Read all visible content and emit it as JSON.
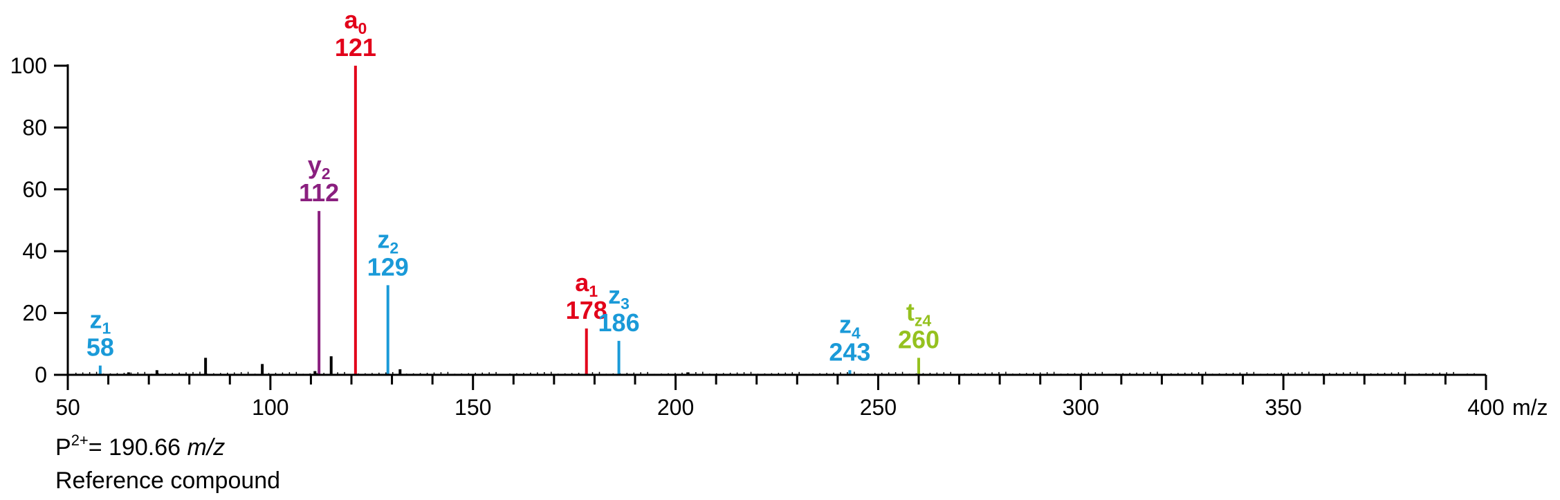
{
  "chart_data": {
    "type": "bar",
    "title": "",
    "xlabel": "m/z",
    "ylabel": "",
    "xlim": [
      50,
      400
    ],
    "ylim": [
      0,
      100
    ],
    "x_ticks": [
      "50",
      "100",
      "150",
      "200",
      "250",
      "300",
      "350",
      "400"
    ],
    "y_ticks": [
      "0",
      "20",
      "40",
      "60",
      "80",
      "100"
    ],
    "colors": {
      "a_ions": "#e2001a",
      "y_ions": "#8a1f7f",
      "z_ions": "#1a9ad8",
      "t_ions": "#95c11f",
      "unassigned": "#000000"
    },
    "labeled_peaks": [
      {
        "ion": "z",
        "sub": "1",
        "mz": 58,
        "label": "58",
        "intensity": 3,
        "color": "#1a9ad8"
      },
      {
        "ion": "y",
        "sub": "2",
        "mz": 112,
        "label": "112",
        "intensity": 53,
        "color": "#8a1f7f"
      },
      {
        "ion": "a",
        "sub": "0",
        "mz": 121,
        "label": "121",
        "intensity": 100,
        "color": "#e2001a"
      },
      {
        "ion": "z",
        "sub": "2",
        "mz": 129,
        "label": "129",
        "intensity": 29,
        "color": "#1a9ad8"
      },
      {
        "ion": "a",
        "sub": "1",
        "mz": 178,
        "label": "178",
        "intensity": 15,
        "color": "#e2001a"
      },
      {
        "ion": "z",
        "sub": "3",
        "mz": 186,
        "label": "186",
        "intensity": 11,
        "color": "#1a9ad8"
      },
      {
        "ion": "z",
        "sub": "4",
        "mz": 243,
        "label": "243",
        "intensity": 1.5,
        "color": "#1a9ad8"
      },
      {
        "ion": "t",
        "sub": "z4",
        "mz": 260,
        "label": "260",
        "intensity": 5.5,
        "color": "#95c11f"
      }
    ],
    "unlabeled_peaks": [
      {
        "mz": 65,
        "intensity": 0.8
      },
      {
        "mz": 72,
        "intensity": 1.5
      },
      {
        "mz": 84,
        "intensity": 5.5
      },
      {
        "mz": 98,
        "intensity": 3.5
      },
      {
        "mz": 111,
        "intensity": 1.2
      },
      {
        "mz": 115,
        "intensity": 6
      },
      {
        "mz": 132,
        "intensity": 1.8
      },
      {
        "mz": 203,
        "intensity": 0.8
      }
    ]
  },
  "footnote": {
    "precursor_prefix": "P",
    "precursor_charge": "2+",
    "precursor_value": "= 190.66 ",
    "precursor_unit": "m/z",
    "compound": "Reference compound"
  }
}
